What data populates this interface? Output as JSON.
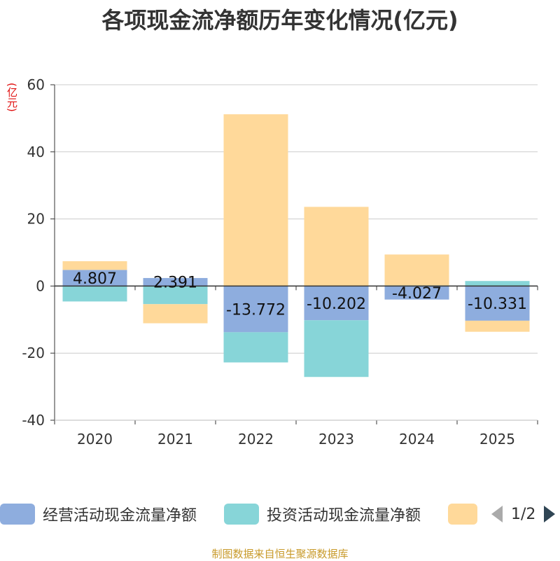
{
  "title": "各项现金流净额历年变化情况(亿元)",
  "unit": "(亿元)",
  "source": "制图数据来自恒生聚源数据库",
  "pager": "1/2",
  "legend": [
    {
      "name": "经营活动现金流量净额",
      "color": "#8eadde"
    },
    {
      "name": "投资活动现金流量净额",
      "color": "#87d5d8"
    },
    {
      "name": "",
      "color": "#ffd99a"
    }
  ],
  "chart_data": {
    "type": "bar",
    "stacked": true,
    "title": "各项现金流净额历年变化情况(亿元)",
    "ylabel": "(亿元)",
    "ylim": [
      -40,
      60
    ],
    "yticks": [
      60,
      40,
      20,
      0,
      -20,
      -40
    ],
    "categories": [
      "2020",
      "2021",
      "2022",
      "2023",
      "2024",
      "2025"
    ],
    "series": [
      {
        "name": "经营活动现金流量净额",
        "color": "#8eadde",
        "values": [
          4.807,
          2.391,
          -13.772,
          -10.202,
          -4.027,
          -10.331
        ]
      },
      {
        "name": "投资活动现金流量净额",
        "color": "#87d5d8",
        "values": [
          -4.6,
          -5.4,
          -9.0,
          -16.9,
          0.2,
          1.5
        ]
      },
      {
        "name": "",
        "color": "#ffd99a",
        "values": [
          2.6,
          -5.7,
          51.2,
          23.6,
          9.2,
          -3.3
        ]
      }
    ],
    "data_labels": [
      "4.807",
      "2.391",
      "-13.772",
      "-10.202",
      "-4.027",
      "-10.331"
    ]
  }
}
